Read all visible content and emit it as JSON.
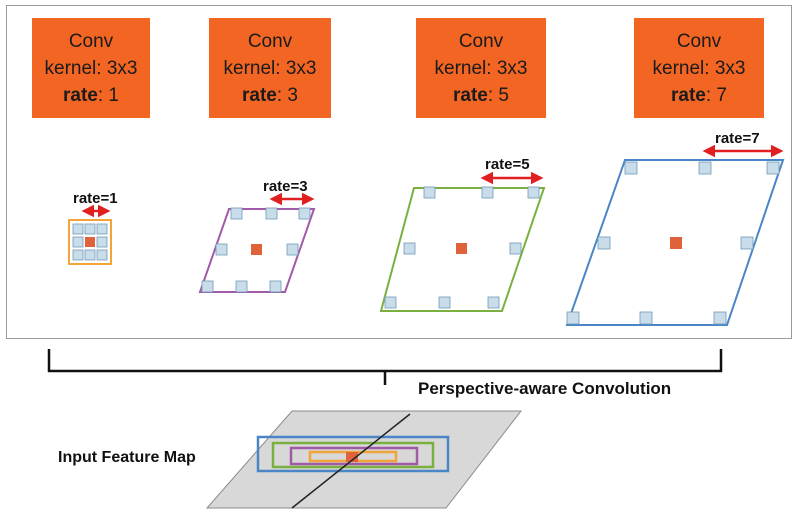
{
  "colors": {
    "conv_box": "#f26522",
    "rate1": "#f2a33a",
    "rate3": "#a05aa8",
    "rate5": "#7ab040",
    "rate7": "#4a86c5",
    "center": "#e0623a",
    "sample": "#c9dcea",
    "arrow": "#e02020"
  },
  "conv_blocks": [
    {
      "title": "Conv",
      "kernel_label": "kernel",
      "kernel_value": ": 3x3",
      "rate_label": "rate",
      "rate_value": ": 1"
    },
    {
      "title": "Conv",
      "kernel_label": "kernel",
      "kernel_value": ": 3x3",
      "rate_label": "rate",
      "rate_value": ": 3"
    },
    {
      "title": "Conv",
      "kernel_label": "kernel",
      "kernel_value": ": 3x3",
      "rate_label": "rate",
      "rate_value": ": 5"
    },
    {
      "title": "Conv",
      "kernel_label": "kernel",
      "kernel_value": ": 3x3",
      "rate_label": "rate",
      "rate_value": ": 7"
    }
  ],
  "rate_labels": [
    "rate=1",
    "rate=3",
    "rate=5",
    "rate=7"
  ],
  "perspective_label": "Perspective-aware Convolution",
  "input_label": "Input Feature Map"
}
